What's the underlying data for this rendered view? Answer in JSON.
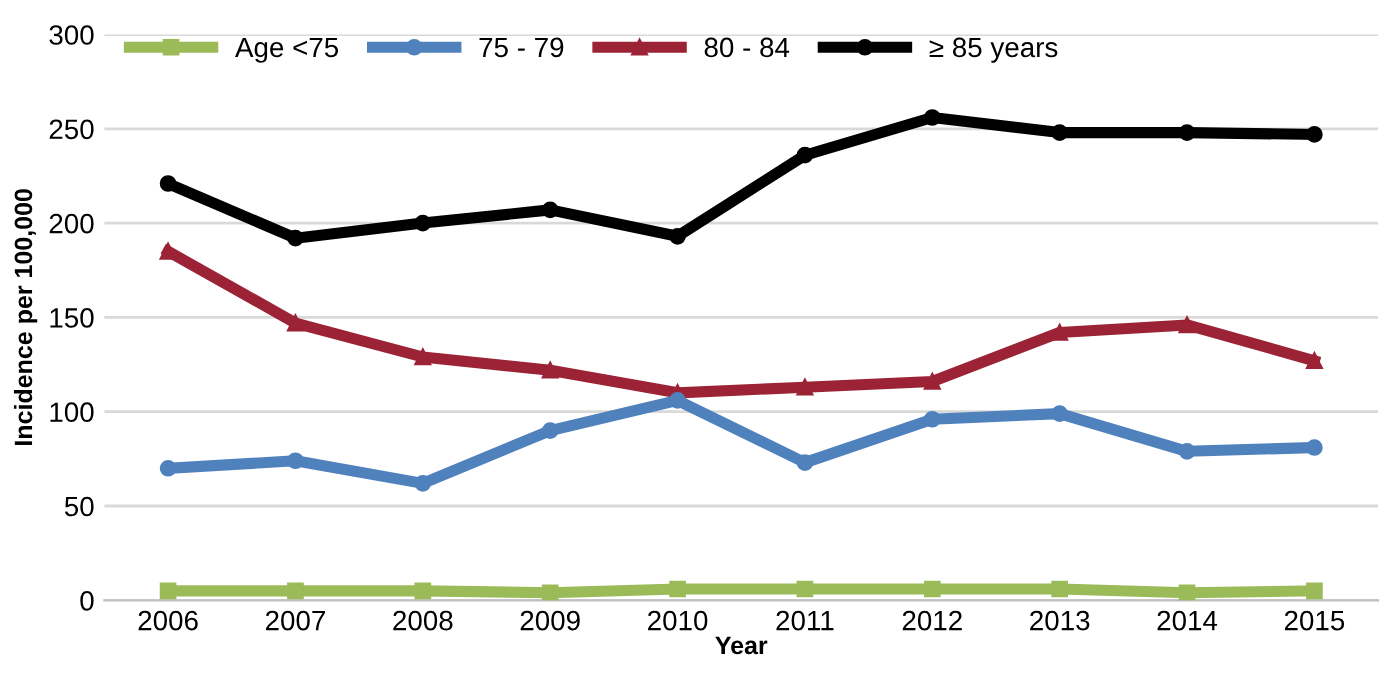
{
  "chart_data": {
    "type": "line",
    "xlabel": "Year",
    "ylabel": "Incidence per 100,000",
    "categories": [
      "2006",
      "2007",
      "2008",
      "2009",
      "2010",
      "2011",
      "2012",
      "2013",
      "2014",
      "2015"
    ],
    "series": [
      {
        "name": "Age <75",
        "color": "#9bbb59",
        "marker": "square",
        "values": [
          5,
          5,
          5,
          4,
          6,
          6,
          6,
          6,
          4,
          5
        ]
      },
      {
        "name": "75 - 79",
        "color": "#4f81bd",
        "marker": "circle",
        "values": [
          70,
          74,
          62,
          90,
          106,
          73,
          96,
          99,
          79,
          81
        ]
      },
      {
        "name": "80 - 84",
        "color": "#9b2335",
        "marker": "triangle",
        "values": [
          185,
          147,
          129,
          122,
          110,
          113,
          116,
          142,
          146,
          127
        ]
      },
      {
        "name": "≥ 85 years",
        "color": "#000000",
        "marker": "circle",
        "values": [
          221,
          192,
          200,
          207,
          193,
          236,
          256,
          248,
          248,
          247
        ]
      }
    ],
    "ylim": [
      0,
      300
    ],
    "yticks": [
      0,
      50,
      100,
      150,
      200,
      250,
      300
    ],
    "grid": "y",
    "legend": "top left",
    "line_style": "solid"
  }
}
